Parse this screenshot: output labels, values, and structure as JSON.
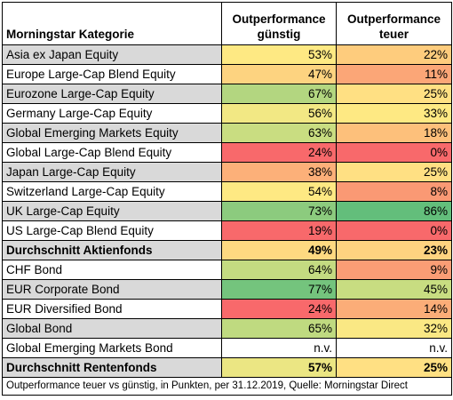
{
  "header": {
    "category": "Morningstar Kategorie",
    "col1_line1": "Outperformance",
    "col1_line2": "günstig",
    "col2_line1": "Outperformance",
    "col2_line2": "teuer"
  },
  "rows": [
    {
      "category": "Asia ex Japan Equity",
      "guenstig": "53%",
      "teuer": "22%",
      "shade": "gray",
      "bold": false,
      "c1": "#fee983",
      "c2": "#fecc7d"
    },
    {
      "category": "Europe Large-Cap Blend Equity",
      "guenstig": "47%",
      "teuer": "11%",
      "shade": "white",
      "bold": false,
      "c1": "#fdd380",
      "c2": "#fba677"
    },
    {
      "category": "Eurozone Large-Cap Equity",
      "guenstig": "67%",
      "teuer": "25%",
      "shade": "gray",
      "bold": false,
      "c1": "#b3d680",
      "c2": "#ffe083"
    },
    {
      "category": "Germany Large-Cap Equity",
      "guenstig": "56%",
      "teuer": "33%",
      "shade": "white",
      "bold": false,
      "c1": "#f2e884",
      "c2": "#fee983"
    },
    {
      "category": "Global Emerging Markets Equity",
      "guenstig": "63%",
      "teuer": "18%",
      "shade": "gray",
      "bold": false,
      "c1": "#c9dd81",
      "c2": "#fdc07b"
    },
    {
      "category": "Global Large-Cap Blend Equity",
      "guenstig": "24%",
      "teuer": "0%",
      "shade": "white",
      "bold": false,
      "c1": "#f8696b",
      "c2": "#f8696b"
    },
    {
      "category": "Japan Large-Cap Equity",
      "guenstig": "38%",
      "teuer": "25%",
      "shade": "gray",
      "bold": false,
      "c1": "#fcb079",
      "c2": "#ffe083"
    },
    {
      "category": "Switzerland Large-Cap Equity",
      "guenstig": "54%",
      "teuer": "8%",
      "shade": "white",
      "bold": false,
      "c1": "#fee983",
      "c2": "#fa9974"
    },
    {
      "category": "UK Large-Cap Equity",
      "guenstig": "73%",
      "teuer": "86%",
      "shade": "gray",
      "bold": false,
      "c1": "#8ccb7e",
      "c2": "#63be7b"
    },
    {
      "category": "US Large-Cap Blend Equity",
      "guenstig": "19%",
      "teuer": "0%",
      "shade": "white",
      "bold": false,
      "c1": "#f8696b",
      "c2": "#f8696b"
    },
    {
      "category": "Durchschnitt Aktienfonds",
      "guenstig": "49%",
      "teuer": "23%",
      "shade": "gray",
      "bold": true,
      "c1": "#fed981",
      "c2": "#fed380"
    },
    {
      "category": "CHF Bond",
      "guenstig": "64%",
      "teuer": "9%",
      "shade": "white",
      "bold": false,
      "c1": "#c4db81",
      "c2": "#fa9d75"
    },
    {
      "category": "EUR Corporate Bond",
      "guenstig": "77%",
      "teuer": "45%",
      "shade": "gray",
      "bold": false,
      "c1": "#74c47d",
      "c2": "#c8dd81"
    },
    {
      "category": "EUR Diversified Bond",
      "guenstig": "24%",
      "teuer": "14%",
      "shade": "white",
      "bold": false,
      "c1": "#f8696b",
      "c2": "#fbad78"
    },
    {
      "category": "Global Bond",
      "guenstig": "65%",
      "teuer": "32%",
      "shade": "gray",
      "bold": false,
      "c1": "#bfda80",
      "c2": "#fae884"
    },
    {
      "category": "Global Emerging Markets Bond",
      "guenstig": "n.v.",
      "teuer": "n.v.",
      "shade": "white",
      "bold": false,
      "c1": "#ffffff",
      "c2": "#ffffff"
    },
    {
      "category": "Durchschnitt Rentenfonds",
      "guenstig": "57%",
      "teuer": "25%",
      "shade": "gray",
      "bold": true,
      "c1": "#ebe683",
      "c2": "#ffe083"
    }
  ],
  "footnote": "Outperformance teuer vs günstig, in Punkten, per 31.12.2019, Quelle: Morningstar Direct"
}
